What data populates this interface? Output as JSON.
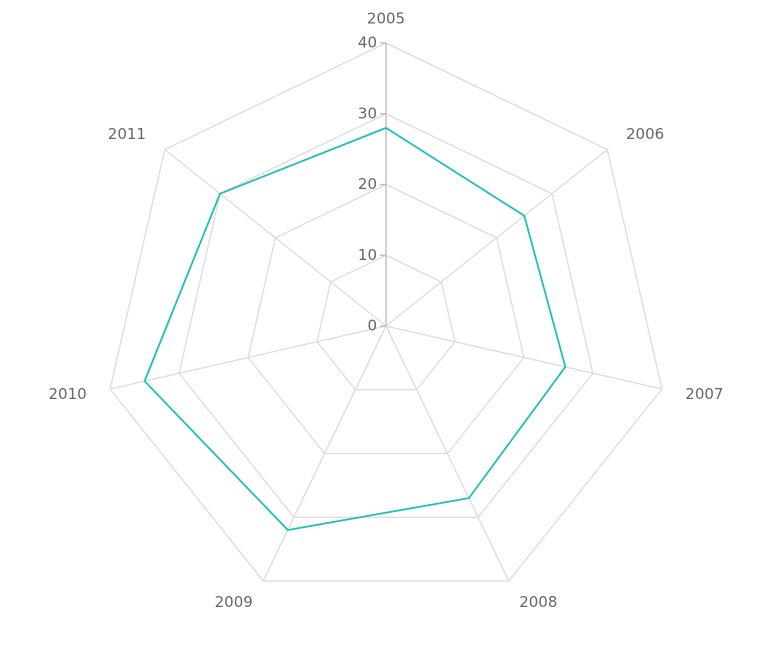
{
  "chart_data": {
    "type": "radar",
    "categories": [
      "2005",
      "2006",
      "2007",
      "2008",
      "2009",
      "2010",
      "2011"
    ],
    "series": [
      {
        "color": "#1fbfb8",
        "values": [
          28,
          25,
          26,
          27,
          32,
          35,
          30
        ]
      }
    ],
    "ylim": [
      0,
      40
    ],
    "yticks": [
      0,
      10,
      20,
      30,
      40
    ],
    "grid": true
  }
}
